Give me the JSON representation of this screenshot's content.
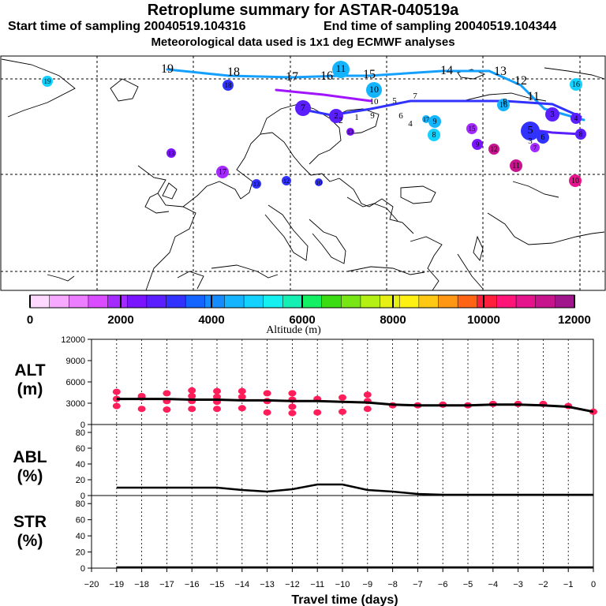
{
  "header": {
    "title": "Retroplume summary for ASTAR-040519a",
    "start": "Start time of sampling 20040519.104316",
    "end": "End time of sampling 20040519.104344",
    "met": "Meteorological data used is 1x1 deg ECMWF analyses"
  },
  "colorbar": {
    "label": "Altitude (m)",
    "ticks": [
      "0",
      "2000",
      "4000",
      "6000",
      "8000",
      "10000",
      "12000"
    ],
    "colors": [
      "#ffd9ff",
      "#f7a8ff",
      "#ec7dff",
      "#d94cff",
      "#a52aff",
      "#7a14ff",
      "#5a1eff",
      "#3232ff",
      "#1464ff",
      "#148cff",
      "#14b4ff",
      "#14d2ff",
      "#14f0f0",
      "#14f0b4",
      "#14f064",
      "#3cdc14",
      "#78e614",
      "#b4f014",
      "#e6f014",
      "#fff014",
      "#ffc814",
      "#ff9614",
      "#ff6414",
      "#ff1e3c",
      "#ff1478",
      "#e6148c",
      "#c8148c",
      "#a0148c"
    ]
  },
  "map_labels": [
    {
      "text": "19",
      "color": "#000",
      "big": true
    },
    {
      "text": "18",
      "color": "#000",
      "big": true
    },
    {
      "text": "17",
      "color": "#000",
      "big": true
    },
    {
      "text": "16",
      "color": "#000",
      "big": true
    },
    {
      "text": "15",
      "color": "#000",
      "big": true
    },
    {
      "text": "14",
      "color": "#000",
      "big": true
    },
    {
      "text": "13",
      "color": "#000",
      "big": true
    },
    {
      "text": "12",
      "color": "#000",
      "big": true
    },
    {
      "text": "11",
      "color": "#000",
      "big": true
    },
    {
      "text": "10",
      "color": "#000",
      "big": false
    },
    {
      "text": "9",
      "color": "#000",
      "big": false
    },
    {
      "text": "8",
      "color": "#000",
      "big": false
    },
    {
      "text": "7",
      "color": "#000",
      "big": false
    },
    {
      "text": "6",
      "color": "#000",
      "big": false
    },
    {
      "text": "5",
      "color": "#000",
      "big": false
    },
    {
      "text": "4",
      "color": "#000",
      "big": false
    },
    {
      "text": "3",
      "color": "#000",
      "big": false
    },
    {
      "text": "2",
      "color": "#000",
      "big": false
    },
    {
      "text": "1",
      "color": "#000",
      "big": false
    }
  ],
  "map_circles": [
    {
      "label": "19",
      "color": "#14d2ff"
    },
    {
      "label": "18",
      "color": "#3232ff"
    },
    {
      "label": "11",
      "color": "#14b4ff"
    },
    {
      "label": "10",
      "color": "#14b4ff"
    },
    {
      "label": "16",
      "color": "#14d2ff"
    },
    {
      "label": "13",
      "color": "#7a14ff"
    },
    {
      "label": "17",
      "color": "#a52aff"
    },
    {
      "label": "13",
      "color": "#3232ff"
    },
    {
      "label": "12",
      "color": "#3232ff"
    },
    {
      "label": "10",
      "color": "#3232ff"
    },
    {
      "label": "13",
      "color": "#7a14ff"
    },
    {
      "label": "7",
      "color": "#5a1eff"
    },
    {
      "label": "2",
      "color": "#5a1eff"
    },
    {
      "label": "17",
      "color": "#14b4ff"
    },
    {
      "label": "9",
      "color": "#14b4ff"
    },
    {
      "label": "8",
      "color": "#14d2ff"
    },
    {
      "label": "15",
      "color": "#a52aff"
    },
    {
      "label": "9",
      "color": "#7a14ff"
    },
    {
      "label": "12",
      "color": "#c8148c"
    },
    {
      "label": "11",
      "color": "#c8148c"
    },
    {
      "label": "10",
      "color": "#e6148c"
    },
    {
      "label": "5",
      "color": "#3232ff"
    },
    {
      "label": "7",
      "color": "#a52aff"
    },
    {
      "label": "16",
      "color": "#14b4ff"
    },
    {
      "label": "3",
      "color": "#5a1eff"
    },
    {
      "label": "4",
      "color": "#5a1eff"
    },
    {
      "label": "6",
      "color": "#3232ff"
    },
    {
      "label": "8",
      "color": "#5a1eff"
    }
  ],
  "panels": {
    "alt": {
      "label1": "ALT",
      "label2": "(m)"
    },
    "abl": {
      "label1": "ABL",
      "label2": "(%)"
    },
    "str": {
      "label1": "STR",
      "label2": "(%)"
    }
  },
  "chart_data": [
    {
      "type": "scatter",
      "title": "ALT",
      "ylabel": "(m)",
      "ylim": [
        0,
        12000
      ],
      "yticks": [
        0,
        3000,
        6000,
        9000,
        12000
      ],
      "xlim": [
        -20,
        0
      ],
      "series": [
        {
          "name": "mean altitude",
          "x": [
            -19,
            -18,
            -17,
            -16,
            -15,
            -14,
            -13,
            -12,
            -11,
            -10,
            -9,
            -8,
            -7,
            -6,
            -5,
            -4,
            -3,
            -2,
            -1,
            0
          ],
          "values": [
            3600,
            3600,
            3600,
            3500,
            3500,
            3400,
            3400,
            3300,
            3300,
            3200,
            3100,
            2800,
            2700,
            2700,
            2700,
            2800,
            2800,
            2700,
            2500,
            1800
          ]
        },
        {
          "name": "clusters",
          "points": [
            {
              "x": -19,
              "y": 4600
            },
            {
              "x": -19,
              "y": 3600
            },
            {
              "x": -19,
              "y": 2600
            },
            {
              "x": -18,
              "y": 4000
            },
            {
              "x": -18,
              "y": 3800
            },
            {
              "x": -18,
              "y": 2200
            },
            {
              "x": -17,
              "y": 4400
            },
            {
              "x": -17,
              "y": 3300
            },
            {
              "x": -17,
              "y": 2100
            },
            {
              "x": -16,
              "y": 4800
            },
            {
              "x": -16,
              "y": 4000
            },
            {
              "x": -16,
              "y": 3300
            },
            {
              "x": -16,
              "y": 2200
            },
            {
              "x": -15,
              "y": 4700
            },
            {
              "x": -15,
              "y": 3900
            },
            {
              "x": -15,
              "y": 3200
            },
            {
              "x": -15,
              "y": 2200
            },
            {
              "x": -14,
              "y": 4700
            },
            {
              "x": -14,
              "y": 3900
            },
            {
              "x": -14,
              "y": 2300
            },
            {
              "x": -13,
              "y": 4400
            },
            {
              "x": -13,
              "y": 3300
            },
            {
              "x": -13,
              "y": 1700
            },
            {
              "x": -12,
              "y": 4400
            },
            {
              "x": -12,
              "y": 3500
            },
            {
              "x": -12,
              "y": 2500
            },
            {
              "x": -12,
              "y": 1600
            },
            {
              "x": -11,
              "y": 3600
            },
            {
              "x": -11,
              "y": 1700
            },
            {
              "x": -10,
              "y": 3800
            },
            {
              "x": -10,
              "y": 1800
            },
            {
              "x": -9,
              "y": 4200
            },
            {
              "x": -9,
              "y": 3300
            },
            {
              "x": -9,
              "y": 2200
            },
            {
              "x": -8,
              "y": 2700
            },
            {
              "x": -7,
              "y": 2700
            },
            {
              "x": -6,
              "y": 2800
            },
            {
              "x": -5,
              "y": 2700
            },
            {
              "x": -4,
              "y": 2900
            },
            {
              "x": -3,
              "y": 2900
            },
            {
              "x": -2,
              "y": 2900
            },
            {
              "x": -1,
              "y": 2600
            },
            {
              "x": 0,
              "y": 1800
            }
          ]
        }
      ]
    },
    {
      "type": "line",
      "title": "ABL",
      "ylabel": "(%)",
      "ylim": [
        0,
        90
      ],
      "yticks": [
        0,
        20,
        40,
        60,
        80
      ],
      "xlim": [
        -20,
        0
      ],
      "x": [
        -19,
        -18,
        -17,
        -16,
        -15,
        -14,
        -13,
        -12,
        -11,
        -10,
        -9,
        -8,
        -7,
        -6,
        -5,
        -4,
        -3,
        -2,
        -1,
        0
      ],
      "values": [
        10,
        10,
        10,
        10,
        10,
        7,
        5,
        8,
        14,
        14,
        7,
        5,
        2,
        1,
        1,
        1,
        1,
        1,
        1,
        1
      ]
    },
    {
      "type": "line",
      "title": "STR",
      "ylabel": "(%)",
      "ylim": [
        0,
        90
      ],
      "yticks": [
        0,
        20,
        40,
        60,
        80
      ],
      "xlim": [
        -20,
        0
      ],
      "x": [
        -19,
        -18,
        -17,
        -16,
        -15,
        -14,
        -13,
        -12,
        -11,
        -10,
        -9,
        -8,
        -7,
        -6,
        -5,
        -4,
        -3,
        -2,
        -1,
        0
      ],
      "values": [
        1,
        1,
        1,
        1,
        1,
        1,
        1,
        1,
        1,
        1,
        1,
        1,
        1,
        1,
        1,
        1,
        1,
        1,
        1,
        1
      ],
      "xlabel": "Travel time (days)",
      "xticks": [
        "-20",
        "-19",
        "-18",
        "-17",
        "-16",
        "-15",
        "-14",
        "-13",
        "-12",
        "-11",
        "-10",
        "-9",
        "-8",
        "-7",
        "-6",
        "-5",
        "-4",
        "-3",
        "-2",
        "-1",
        "0"
      ]
    }
  ]
}
